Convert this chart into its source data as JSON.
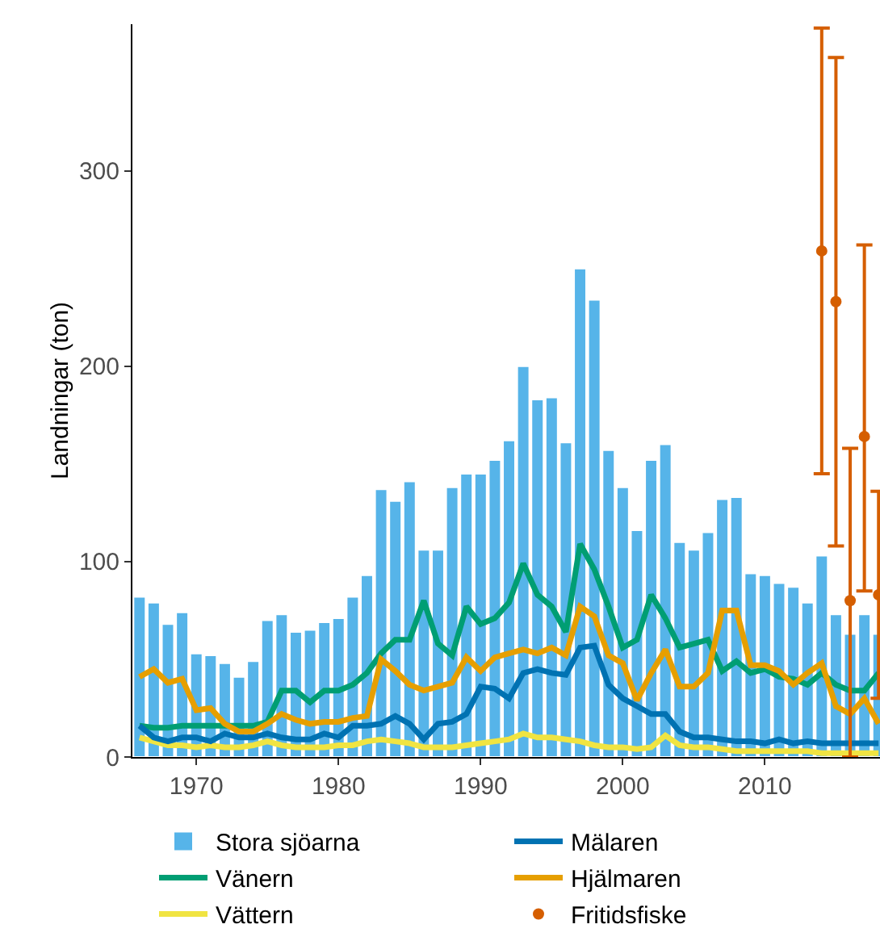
{
  "chart_data": {
    "type": "bar",
    "ylabel": "Landningar (ton)",
    "x": [
      1966,
      1967,
      1968,
      1969,
      1970,
      1971,
      1972,
      1973,
      1974,
      1975,
      1976,
      1977,
      1978,
      1979,
      1980,
      1981,
      1982,
      1983,
      1984,
      1985,
      1986,
      1987,
      1988,
      1989,
      1990,
      1991,
      1992,
      1993,
      1994,
      1995,
      1996,
      1997,
      1998,
      1999,
      2000,
      2001,
      2002,
      2003,
      2004,
      2005,
      2006,
      2007,
      2008,
      2009,
      2010,
      2011,
      2012,
      2013,
      2014,
      2015,
      2016,
      2017,
      2018
    ],
    "series": [
      {
        "name": "Stora sjöarna",
        "color": "#56b4e9",
        "values": [
          82,
          79,
          68,
          74,
          53,
          52,
          48,
          41,
          49,
          70,
          73,
          64,
          65,
          69,
          71,
          82,
          93,
          137,
          131,
          141,
          106,
          106,
          138,
          145,
          145,
          152,
          162,
          200,
          183,
          184,
          161,
          250,
          234,
          157,
          138,
          116,
          152,
          160,
          110,
          106,
          115,
          132,
          133,
          94,
          93,
          89,
          87,
          79,
          103,
          73,
          63,
          73,
          63
        ]
      },
      {
        "name": "Vänern",
        "type": "line",
        "color": "#009e73",
        "values": [
          16,
          15,
          15,
          16,
          16,
          16,
          16,
          16,
          16,
          18,
          34,
          34,
          28,
          34,
          34,
          37,
          43,
          53,
          60,
          60,
          80,
          58,
          52,
          77,
          68,
          71,
          79,
          99,
          83,
          77,
          64,
          109,
          96,
          77,
          56,
          60,
          83,
          71,
          56,
          58,
          60,
          44,
          49,
          43,
          45,
          41,
          40,
          37,
          43,
          37,
          34,
          34,
          43
        ]
      },
      {
        "name": "Vättern",
        "type": "line",
        "color": "#f0e442",
        "values": [
          10,
          8,
          6,
          6,
          5,
          6,
          5,
          5,
          6,
          8,
          6,
          5,
          5,
          5,
          6,
          6,
          8,
          9,
          8,
          7,
          5,
          5,
          5,
          6,
          7,
          8,
          9,
          12,
          10,
          10,
          9,
          8,
          6,
          5,
          5,
          4,
          5,
          11,
          6,
          5,
          5,
          4,
          3,
          3,
          3,
          3,
          3,
          3,
          2,
          2,
          2,
          2,
          2
        ]
      },
      {
        "name": "Mälaren",
        "type": "line",
        "color": "#0072b2",
        "values": [
          16,
          10,
          8,
          10,
          10,
          8,
          12,
          10,
          10,
          12,
          10,
          9,
          9,
          12,
          10,
          16,
          16,
          17,
          21,
          17,
          9,
          17,
          18,
          22,
          36,
          35,
          30,
          43,
          45,
          43,
          42,
          56,
          57,
          37,
          30,
          26,
          22,
          22,
          13,
          10,
          10,
          9,
          8,
          8,
          7,
          9,
          7,
          8,
          7,
          7,
          7,
          7,
          7
        ]
      },
      {
        "name": "Hjälmaren",
        "type": "line",
        "color": "#e69f00",
        "values": [
          41,
          45,
          38,
          40,
          24,
          25,
          17,
          13,
          13,
          17,
          22,
          19,
          17,
          18,
          18,
          20,
          21,
          50,
          44,
          37,
          34,
          36,
          38,
          51,
          44,
          51,
          53,
          55,
          53,
          56,
          52,
          77,
          72,
          52,
          48,
          29,
          43,
          55,
          36,
          36,
          43,
          75,
          75,
          47,
          47,
          44,
          37,
          43,
          48,
          26,
          22,
          30,
          17
        ]
      },
      {
        "name": "Fritidsfiske",
        "type": "scatter",
        "marker": "circle",
        "color": "#d55e00",
        "x": [
          2014,
          2015,
          2016,
          2017,
          2018
        ],
        "values": [
          259,
          233,
          80,
          164,
          83
        ],
        "errors": [
          [
            145,
            373
          ],
          [
            108,
            358
          ],
          [
            0,
            158
          ],
          [
            85,
            262
          ],
          [
            30,
            136
          ]
        ]
      }
    ],
    "xlim": [
      1965.5,
      2018.1
    ],
    "xticks": [
      1970,
      1980,
      1990,
      2000,
      2010
    ],
    "ylim": [
      0,
      375
    ],
    "yticks": [
      0,
      100,
      200,
      300
    ],
    "grid": false,
    "legend": "bottom",
    "line_style": "solid"
  }
}
